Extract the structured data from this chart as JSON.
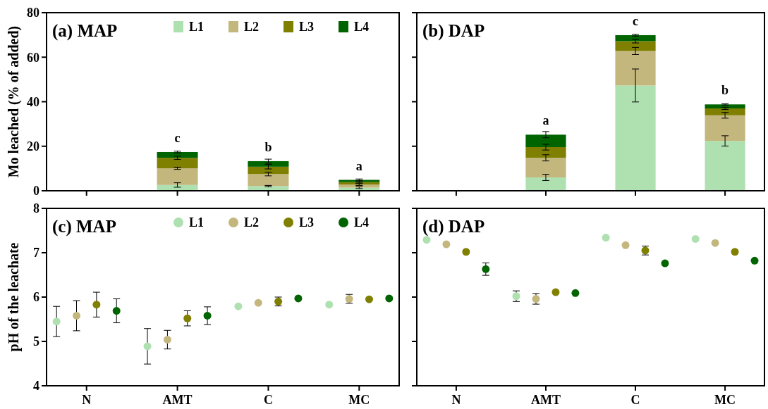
{
  "chart_data": [
    {
      "type": "bar",
      "title": "(a) MAP",
      "ylabel": "Mo leached (% of added)",
      "categories": [
        "N",
        "AMT",
        "C",
        "MC"
      ],
      "stacked": true,
      "ylim": [
        0,
        80
      ],
      "yticks": [
        0,
        20,
        40,
        60,
        80
      ],
      "tick_labels": "y",
      "legend": "top right",
      "series": [
        {
          "name": "L1",
          "color": "#aee0b0",
          "values": [
            null,
            2.6,
            2.1,
            1.4
          ],
          "errors": [
            null,
            1.0,
            0.3,
            0.4
          ]
        },
        {
          "name": "L2",
          "color": "#c4b77e",
          "values": [
            null,
            7.5,
            5.4,
            1.4
          ],
          "errors": [
            null,
            0.5,
            0.8,
            0.4
          ]
        },
        {
          "name": "L3",
          "color": "#7f7f00",
          "values": [
            null,
            4.7,
            3.3,
            1.1
          ],
          "errors": [
            null,
            0.7,
            1.0,
            0.4
          ]
        },
        {
          "name": "L4",
          "color": "#006400",
          "values": [
            null,
            2.6,
            2.5,
            1.0
          ],
          "errors": [
            null,
            0.4,
            0.9,
            0.4
          ]
        }
      ],
      "annotations": [
        {
          "text": "c",
          "x": "AMT",
          "y": 17.4
        },
        {
          "text": "b",
          "x": "C",
          "y": 13.3
        },
        {
          "text": "a",
          "x": "MC",
          "y": 4.9
        }
      ]
    },
    {
      "type": "bar",
      "title": "(b) DAP",
      "categories": [
        "N",
        "AMT",
        "C",
        "MC"
      ],
      "stacked": true,
      "ylim": [
        0,
        80
      ],
      "yticks": [
        0,
        20,
        40,
        60,
        80
      ],
      "tick_labels": false,
      "series": [
        {
          "color": "#aee0b0",
          "values": [
            null,
            6.0,
            47.3,
            22.4
          ],
          "errors": [
            null,
            1.4,
            7.4,
            2.3
          ]
        },
        {
          "color": "#c4b77e",
          "values": [
            null,
            8.8,
            15.5,
            11.5
          ],
          "errors": [
            null,
            1.4,
            1.6,
            1.3
          ]
        },
        {
          "color": "#7f7f00",
          "values": [
            null,
            4.8,
            4.4,
            3.1
          ],
          "errors": [
            null,
            1.3,
            0.8,
            0.5
          ]
        },
        {
          "color": "#006400",
          "values": [
            null,
            5.6,
            2.7,
            1.8
          ],
          "errors": [
            null,
            1.4,
            0.4,
            0.3
          ]
        }
      ],
      "annotations": [
        {
          "text": "a",
          "x": "AMT",
          "y": 25.2
        },
        {
          "text": "c",
          "x": "C",
          "y": 69.9
        },
        {
          "text": "b",
          "x": "MC",
          "y": 38.8
        }
      ]
    },
    {
      "type": "scatter",
      "title": "(c) MAP",
      "ylabel": "pH of the leachate",
      "categories": [
        "N",
        "AMT",
        "C",
        "MC"
      ],
      "ylim": [
        4,
        8
      ],
      "yticks": [
        4,
        5,
        6,
        7,
        8
      ],
      "legend": "top right",
      "marker": "circle",
      "series": [
        {
          "name": "L1",
          "color": "#aee0b0",
          "values": [
            5.45,
            4.89,
            5.79,
            5.83
          ],
          "errors": [
            0.34,
            0.4,
            null,
            null
          ]
        },
        {
          "name": "L2",
          "color": "#c4b77e",
          "values": [
            5.58,
            5.04,
            5.87,
            5.96
          ],
          "errors": [
            0.34,
            0.21,
            null,
            0.1
          ]
        },
        {
          "name": "L3",
          "color": "#7f7f00",
          "values": [
            5.83,
            5.52,
            5.9,
            5.95
          ],
          "errors": [
            0.28,
            0.17,
            0.1,
            null
          ]
        },
        {
          "name": "L4",
          "color": "#006400",
          "values": [
            5.69,
            5.58,
            5.97,
            5.97
          ],
          "errors": [
            0.27,
            0.2,
            null,
            null
          ]
        }
      ]
    },
    {
      "type": "scatter",
      "title": "(d) DAP",
      "categories": [
        "N",
        "AMT",
        "C",
        "MC"
      ],
      "ylim": [
        4,
        8
      ],
      "yticks": [
        4,
        5,
        6,
        7,
        8
      ],
      "tick_labels": "x",
      "marker": "circle",
      "series": [
        {
          "color": "#aee0b0",
          "values": [
            7.29,
            6.02,
            7.34,
            7.31
          ],
          "errors": [
            null,
            0.12,
            null,
            null
          ]
        },
        {
          "color": "#c4b77e",
          "values": [
            7.19,
            5.96,
            7.17,
            7.22
          ],
          "errors": [
            null,
            0.12,
            null,
            null
          ]
        },
        {
          "color": "#7f7f00",
          "values": [
            7.02,
            6.11,
            7.05,
            7.02
          ],
          "errors": [
            null,
            null,
            0.1,
            null
          ]
        },
        {
          "color": "#006400",
          "values": [
            6.63,
            6.09,
            6.76,
            6.82
          ],
          "errors": [
            0.14,
            null,
            null,
            null
          ]
        }
      ]
    }
  ]
}
